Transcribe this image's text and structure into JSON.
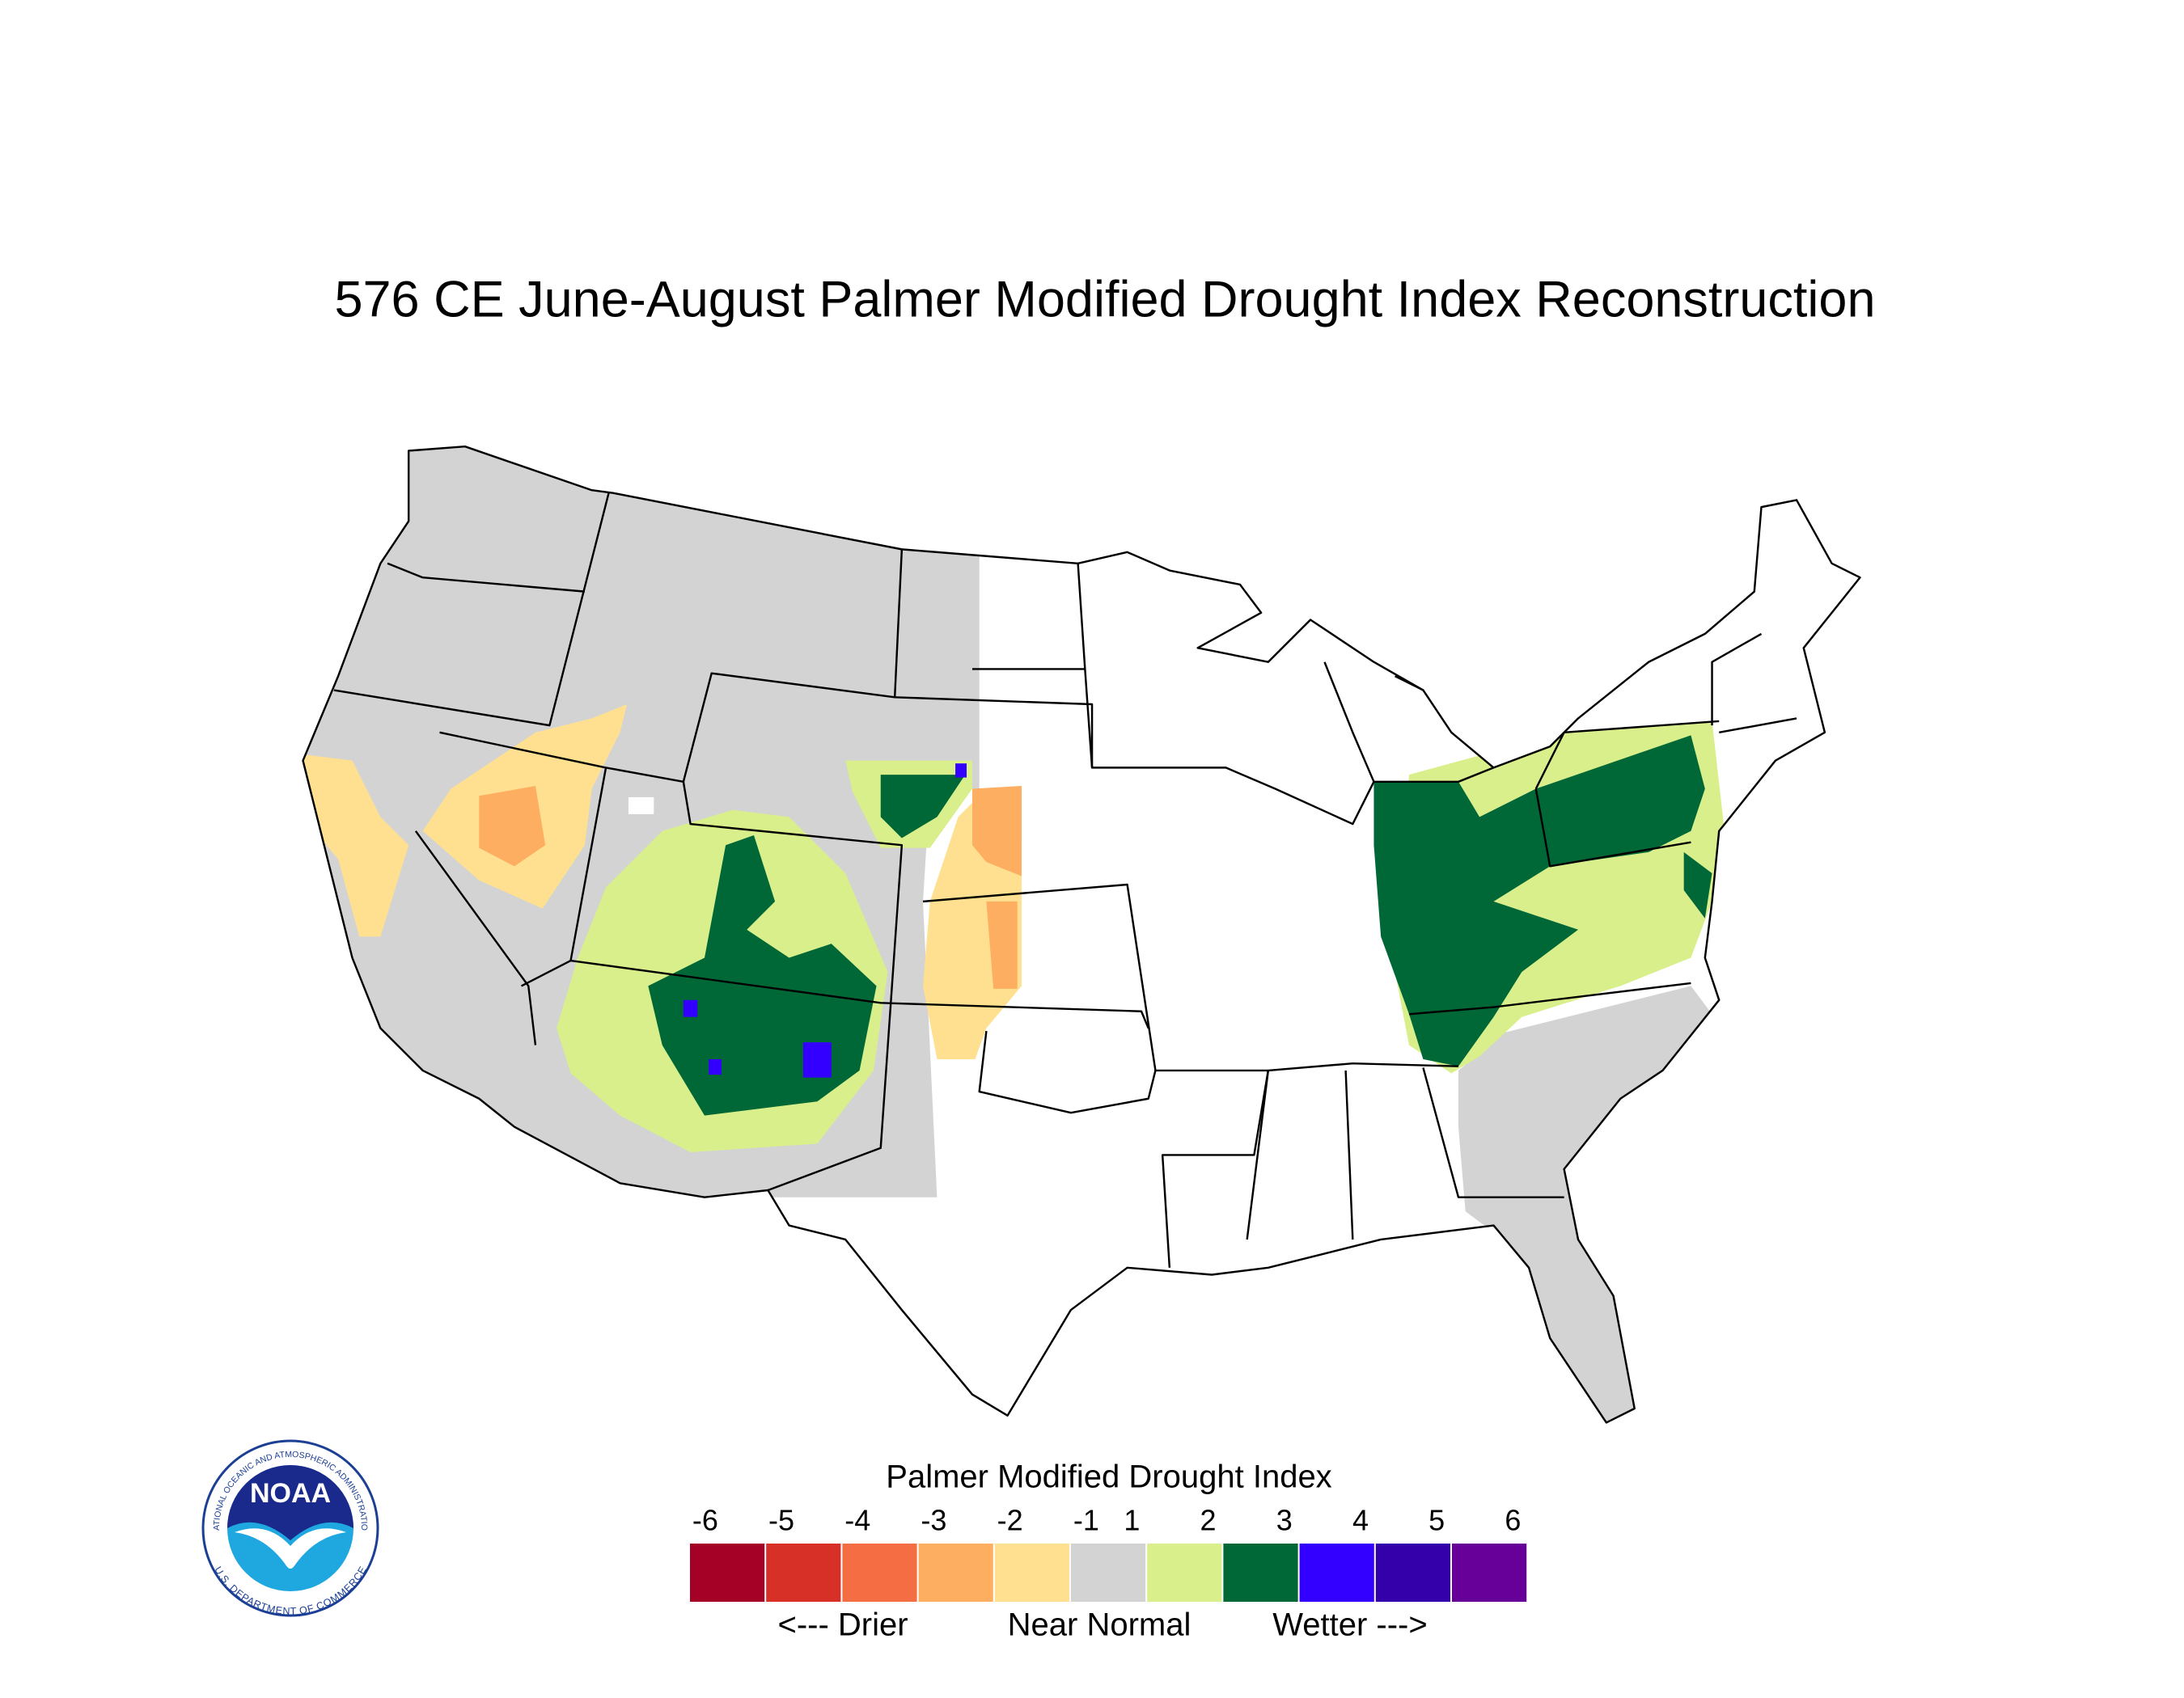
{
  "title": "576 CE  June-August  Palmer Modified Drought Index Reconstruction",
  "legend": {
    "title": "Palmer Modified Drought Index",
    "ticks": [
      -6,
      -5,
      -4,
      -3,
      -2,
      -1,
      1,
      2,
      3,
      4,
      5,
      6
    ],
    "colors": [
      "#a50026",
      "#d73027",
      "#f46d43",
      "#fdae61",
      "#fee090",
      "#d3d3d3",
      "#d9ef8b",
      "#006837",
      "#3300ff",
      "#3300aa",
      "#660099"
    ],
    "labels": [
      "<--- Drier",
      "Near Normal",
      "Wetter --->"
    ]
  },
  "logo": {
    "name": "NOAA",
    "top_text": "NATIONAL OCEANIC AND ATMOSPHERIC ADMINISTRATION",
    "bottom_text": "U.S. DEPARTMENT OF COMMERCE"
  }
}
